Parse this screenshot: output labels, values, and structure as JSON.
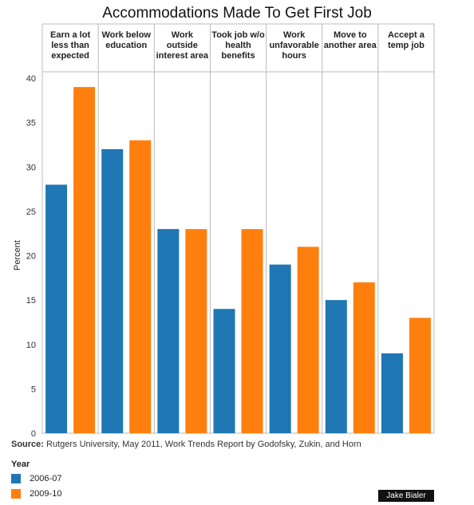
{
  "chart_data": {
    "type": "bar",
    "title": "Accommodations Made To Get First Job",
    "ylabel": "Percent",
    "xlabel": "",
    "ylim": [
      0,
      40
    ],
    "yticks": [
      0,
      5,
      10,
      15,
      20,
      25,
      30,
      35,
      40
    ],
    "grid": false,
    "categories": [
      "Earn a lot less than expected",
      "Work below education",
      "Work outside interest area",
      "Took job w/o health benefits",
      "Work unfavorable hours",
      "Move to another area",
      "Accept a temp job"
    ],
    "series": [
      {
        "name": "2006-07",
        "color": "#1f77b4",
        "values": [
          28,
          32,
          23,
          14,
          19,
          15,
          9
        ]
      },
      {
        "name": "2009-10",
        "color": "#ff7f0e",
        "values": [
          39,
          33,
          23,
          23,
          21,
          17,
          13
        ]
      }
    ],
    "legend_title": "Year",
    "legend_position": "bottom-left"
  },
  "source": {
    "label": "Source:",
    "text": "Rutgers University, May 2011, Work Trends Report by Godofsky, Zukin, and Horn"
  },
  "credit": "Jake Bialer"
}
